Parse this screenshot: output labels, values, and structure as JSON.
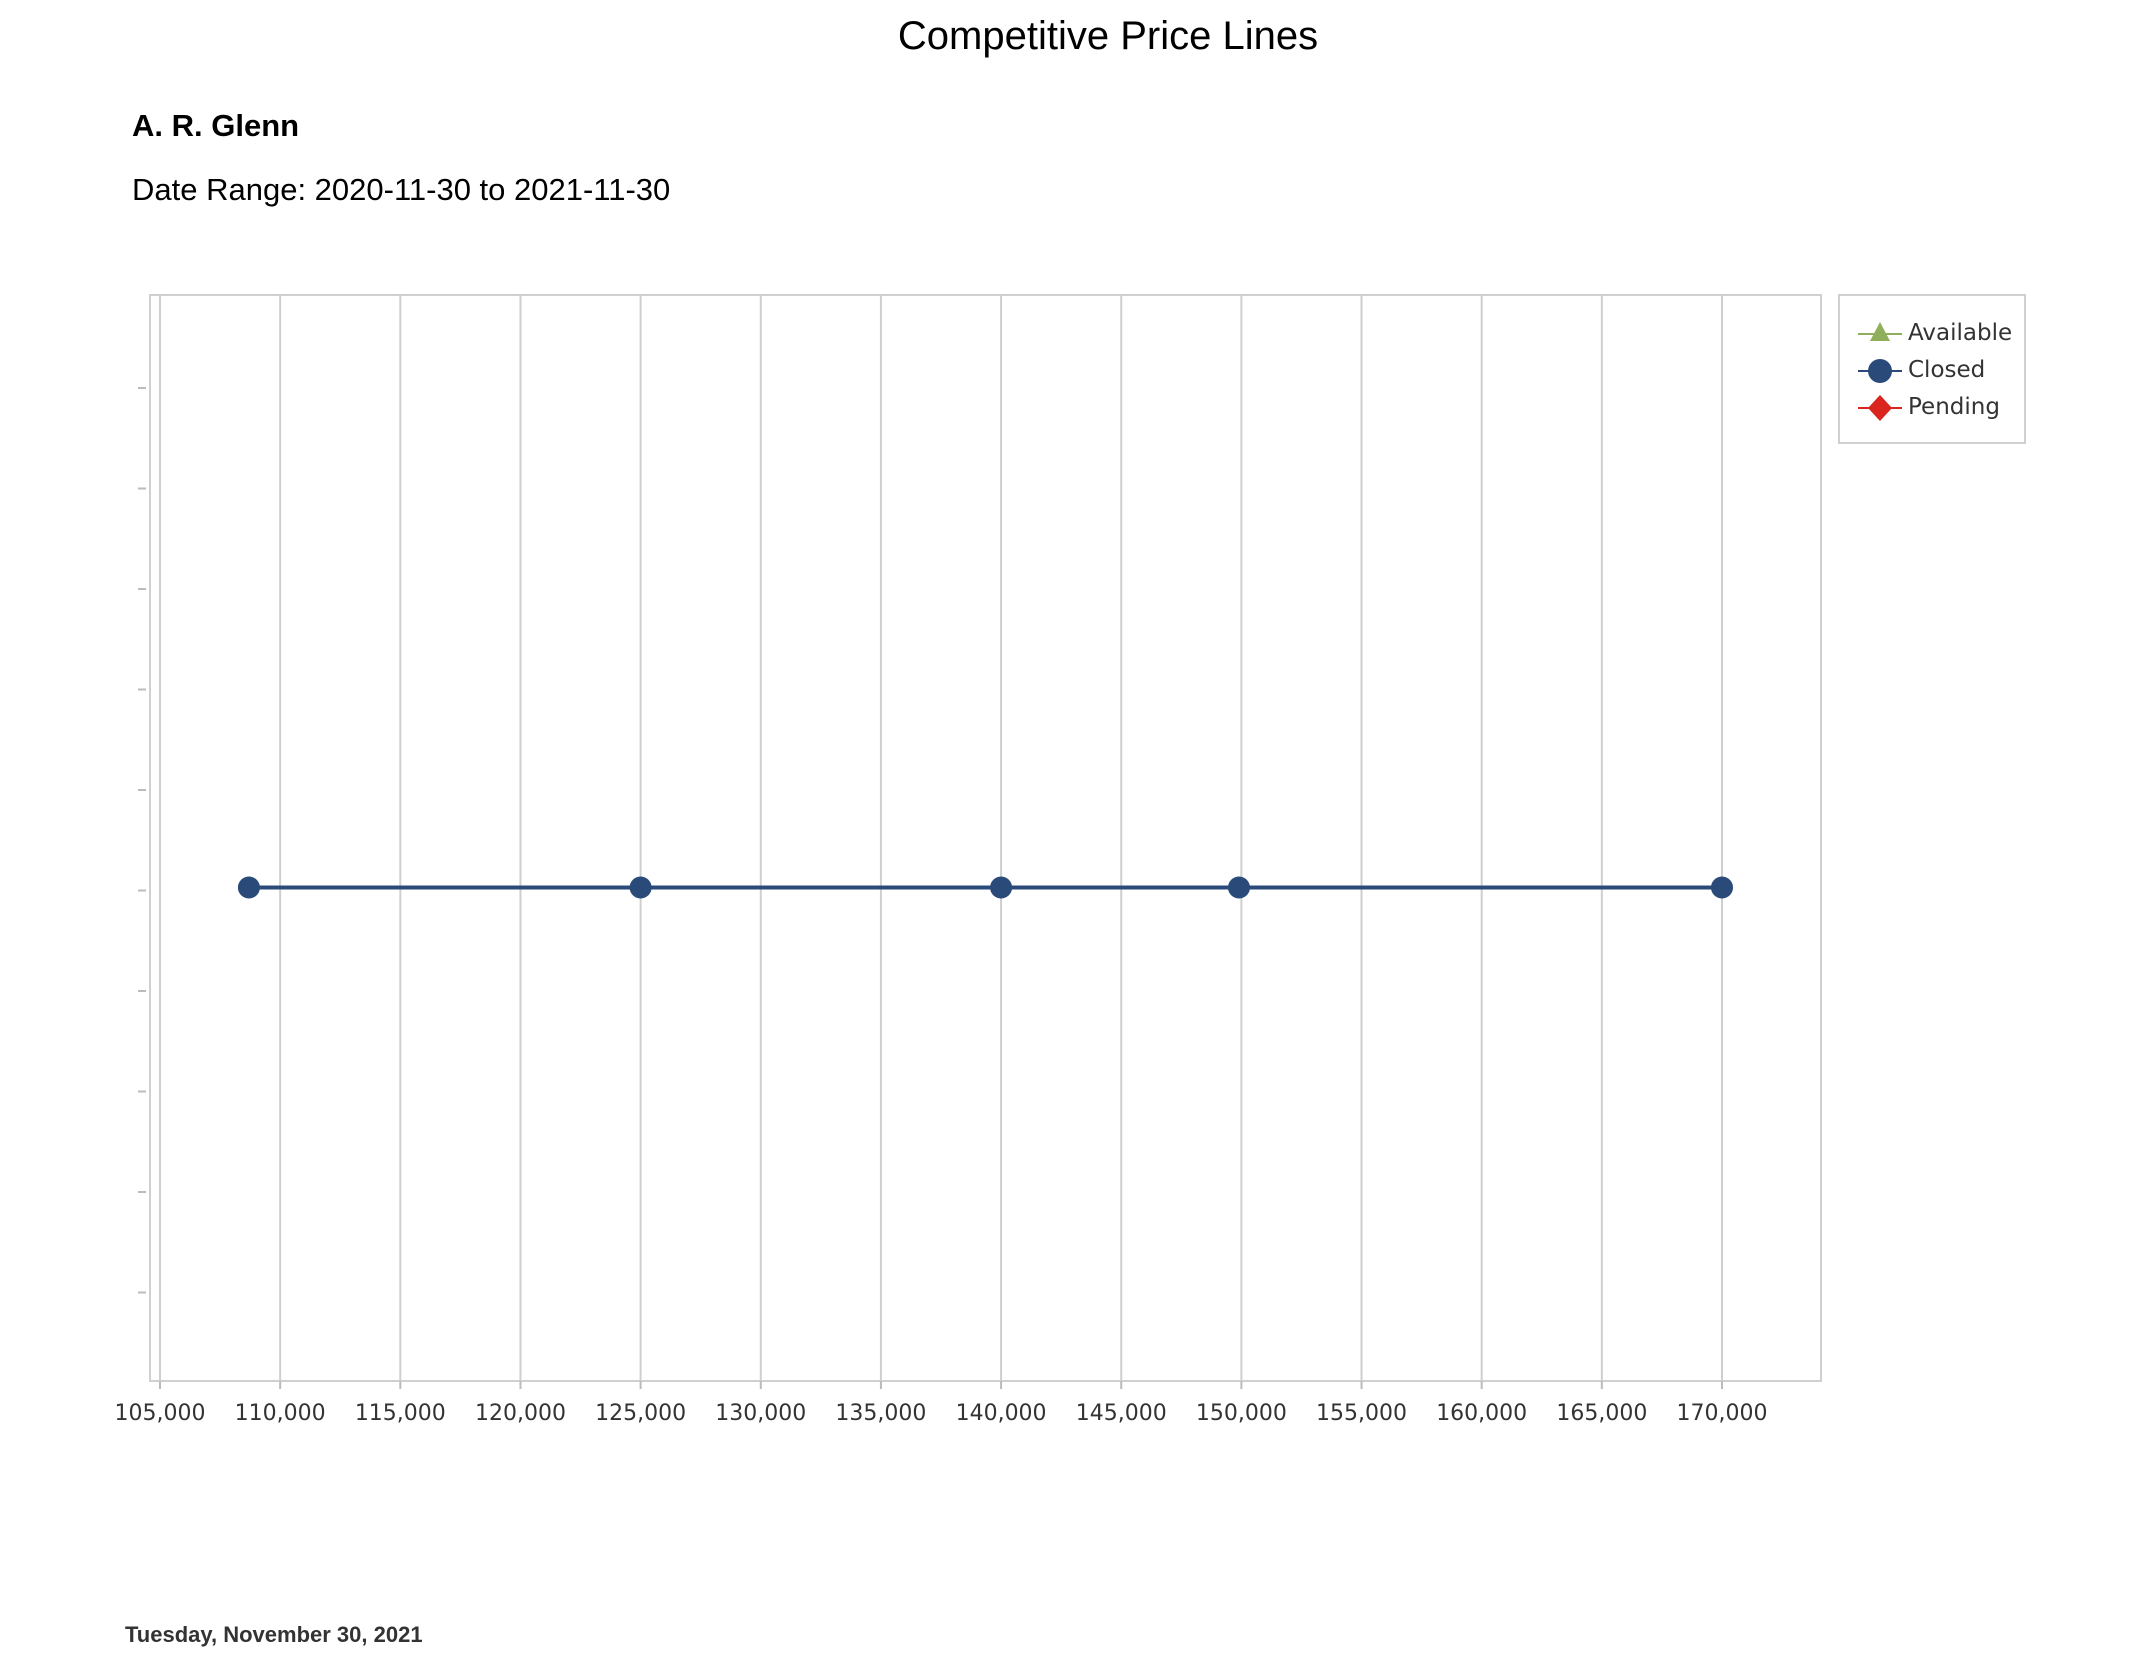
{
  "report": {
    "title": "Competitive Price Lines",
    "agent": "A. R. Glenn",
    "date_range": "Date Range: 2020-11-30 to 2021-11-30",
    "footer_date": "Tuesday, November 30, 2021"
  },
  "chart_data": {
    "type": "line",
    "title": "",
    "xlabel": "",
    "ylabel": "",
    "xlim": [
      105000,
      170000
    ],
    "x_ticks": [
      "105,000",
      "110,000",
      "115,000",
      "120,000",
      "125,000",
      "130,000",
      "135,000",
      "140,000",
      "145,000",
      "150,000",
      "155,000",
      "160,000",
      "165,000",
      "170,000"
    ],
    "x_tick_values": [
      105000,
      110000,
      115000,
      120000,
      125000,
      130000,
      135000,
      140000,
      145000,
      150000,
      155000,
      160000,
      165000,
      170000
    ],
    "grid": true,
    "legend_position": "top-right",
    "legend": [
      {
        "name": "Available",
        "marker": "triangle",
        "color": "#8faf5a"
      },
      {
        "name": "Closed",
        "marker": "circle",
        "color": "#2a4a7a"
      },
      {
        "name": "Pending",
        "marker": "diamond",
        "color": "#d9251d"
      }
    ],
    "series": [
      {
        "name": "Closed",
        "color": "#2a4a7a",
        "points": [
          {
            "x": 108700,
            "y": 0.5
          },
          {
            "x": 125000,
            "y": 0.5
          },
          {
            "x": 140000,
            "y": 0.5
          },
          {
            "x": 149900,
            "y": 0.5
          },
          {
            "x": 170000,
            "y": 0.5
          }
        ]
      }
    ],
    "ylim": [
      0,
      1
    ]
  }
}
